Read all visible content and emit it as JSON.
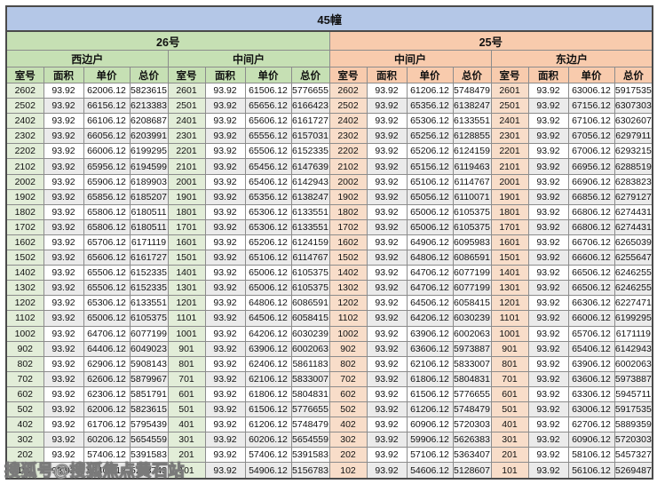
{
  "title": "45幢",
  "buildings": [
    {
      "name": "26号",
      "units": [
        "西边户",
        "中间户"
      ]
    },
    {
      "name": "25号",
      "units": [
        "中间户",
        "东边户"
      ]
    }
  ],
  "column_headers": [
    "室号",
    "面积",
    "单价",
    "总价"
  ],
  "watermark": "搜狐号@搜狐焦点黄石站",
  "colors": {
    "banner_bg": "#b4c7e7",
    "building_26_bg": "#c6e0b4",
    "building_25_bg": "#f8cbad",
    "room_cell_26_bg": "#e2edd8",
    "room_cell_25_bg": "#f8ddc9",
    "row_bg": "#ffffff",
    "stripe_bg": "#ebebeb"
  },
  "rows": [
    [
      [
        "2602",
        "93.92",
        "62006.12",
        "5823615"
      ],
      [
        "2601",
        "93.92",
        "61506.12",
        "5776655"
      ],
      [
        "2602",
        "93.92",
        "61206.12",
        "5748479"
      ],
      [
        "2601",
        "93.92",
        "63006.12",
        "5917535"
      ]
    ],
    [
      [
        "2502",
        "93.92",
        "66156.12",
        "6213383"
      ],
      [
        "2501",
        "93.92",
        "65656.12",
        "6166423"
      ],
      [
        "2502",
        "93.92",
        "65356.12",
        "6138247"
      ],
      [
        "2501",
        "93.92",
        "67156.12",
        "6307303"
      ]
    ],
    [
      [
        "2402",
        "93.92",
        "66106.12",
        "6208687"
      ],
      [
        "2401",
        "93.92",
        "65606.12",
        "6161727"
      ],
      [
        "2402",
        "93.92",
        "65306.12",
        "6133551"
      ],
      [
        "2401",
        "93.92",
        "67106.12",
        "6302607"
      ]
    ],
    [
      [
        "2302",
        "93.92",
        "66056.12",
        "6203991"
      ],
      [
        "2301",
        "93.92",
        "65556.12",
        "6157031"
      ],
      [
        "2302",
        "93.92",
        "65256.12",
        "6128855"
      ],
      [
        "2301",
        "93.92",
        "67056.12",
        "6297911"
      ]
    ],
    [
      [
        "2202",
        "93.92",
        "66006.12",
        "6199295"
      ],
      [
        "2201",
        "93.92",
        "65506.12",
        "6152335"
      ],
      [
        "2202",
        "93.92",
        "65206.12",
        "6124159"
      ],
      [
        "2201",
        "93.92",
        "67006.12",
        "6293215"
      ]
    ],
    [
      [
        "2102",
        "93.92",
        "65956.12",
        "6194599"
      ],
      [
        "2101",
        "93.92",
        "65456.12",
        "6147639"
      ],
      [
        "2102",
        "93.92",
        "65156.12",
        "6119463"
      ],
      [
        "2101",
        "93.92",
        "66956.12",
        "6288519"
      ]
    ],
    [
      [
        "2002",
        "93.92",
        "65906.12",
        "6189903"
      ],
      [
        "2001",
        "93.92",
        "65406.12",
        "6142943"
      ],
      [
        "2002",
        "93.92",
        "65106.12",
        "6114767"
      ],
      [
        "2001",
        "93.92",
        "66906.12",
        "6283823"
      ]
    ],
    [
      [
        "1902",
        "93.92",
        "65856.12",
        "6185207"
      ],
      [
        "1901",
        "93.92",
        "65356.12",
        "6138247"
      ],
      [
        "1902",
        "93.92",
        "65056.12",
        "6110071"
      ],
      [
        "1901",
        "93.92",
        "66856.12",
        "6279127"
      ]
    ],
    [
      [
        "1802",
        "93.92",
        "65806.12",
        "6180511"
      ],
      [
        "1801",
        "93.92",
        "65306.12",
        "6133551"
      ],
      [
        "1802",
        "93.92",
        "65006.12",
        "6105375"
      ],
      [
        "1801",
        "93.92",
        "66806.12",
        "6274431"
      ]
    ],
    [
      [
        "1702",
        "93.92",
        "65806.12",
        "6180511"
      ],
      [
        "1701",
        "93.92",
        "65306.12",
        "6133551"
      ],
      [
        "1702",
        "93.92",
        "65006.12",
        "6105375"
      ],
      [
        "1701",
        "93.92",
        "66806.12",
        "6274431"
      ]
    ],
    [
      [
        "1602",
        "93.92",
        "65706.12",
        "6171119"
      ],
      [
        "1601",
        "93.92",
        "65206.12",
        "6124159"
      ],
      [
        "1602",
        "93.92",
        "64906.12",
        "6095983"
      ],
      [
        "1601",
        "93.92",
        "66706.12",
        "6265039"
      ]
    ],
    [
      [
        "1502",
        "93.92",
        "65606.12",
        "6161727"
      ],
      [
        "1501",
        "93.92",
        "65106.12",
        "6114767"
      ],
      [
        "1502",
        "93.92",
        "64806.12",
        "6086591"
      ],
      [
        "1501",
        "93.92",
        "66606.12",
        "6255647"
      ]
    ],
    [
      [
        "1402",
        "93.92",
        "65506.12",
        "6152335"
      ],
      [
        "1401",
        "93.92",
        "65006.12",
        "6105375"
      ],
      [
        "1402",
        "93.92",
        "64706.12",
        "6077199"
      ],
      [
        "1401",
        "93.92",
        "66506.12",
        "6246255"
      ]
    ],
    [
      [
        "1302",
        "93.92",
        "65506.12",
        "6152335"
      ],
      [
        "1301",
        "93.92",
        "65006.12",
        "6105375"
      ],
      [
        "1302",
        "93.92",
        "64706.12",
        "6077199"
      ],
      [
        "1301",
        "93.92",
        "66506.12",
        "6246255"
      ]
    ],
    [
      [
        "1202",
        "93.92",
        "65306.12",
        "6133551"
      ],
      [
        "1201",
        "93.92",
        "64806.12",
        "6086591"
      ],
      [
        "1202",
        "93.92",
        "64506.12",
        "6058415"
      ],
      [
        "1201",
        "93.92",
        "66306.12",
        "6227471"
      ]
    ],
    [
      [
        "1102",
        "93.92",
        "65006.12",
        "6105375"
      ],
      [
        "1101",
        "93.92",
        "64506.12",
        "6058415"
      ],
      [
        "1102",
        "93.92",
        "64206.12",
        "6030239"
      ],
      [
        "1101",
        "93.92",
        "66006.12",
        "6199295"
      ]
    ],
    [
      [
        "1002",
        "93.92",
        "64706.12",
        "6077199"
      ],
      [
        "1001",
        "93.92",
        "64206.12",
        "6030239"
      ],
      [
        "1002",
        "93.92",
        "63906.12",
        "6002063"
      ],
      [
        "1001",
        "93.92",
        "65706.12",
        "6171119"
      ]
    ],
    [
      [
        "902",
        "93.92",
        "64406.12",
        "6049023"
      ],
      [
        "901",
        "93.92",
        "63906.12",
        "6002063"
      ],
      [
        "902",
        "93.92",
        "63606.12",
        "5973887"
      ],
      [
        "901",
        "93.92",
        "65406.12",
        "6142943"
      ]
    ],
    [
      [
        "802",
        "93.92",
        "62906.12",
        "5908143"
      ],
      [
        "801",
        "93.92",
        "62406.12",
        "5861183"
      ],
      [
        "802",
        "93.92",
        "62106.12",
        "5833007"
      ],
      [
        "801",
        "93.92",
        "63906.12",
        "6002063"
      ]
    ],
    [
      [
        "702",
        "93.92",
        "62606.12",
        "5879967"
      ],
      [
        "701",
        "93.92",
        "62106.12",
        "5833007"
      ],
      [
        "702",
        "93.92",
        "61806.12",
        "5804831"
      ],
      [
        "701",
        "93.92",
        "63606.12",
        "5973887"
      ]
    ],
    [
      [
        "602",
        "93.92",
        "62306.12",
        "5851791"
      ],
      [
        "601",
        "93.92",
        "61806.12",
        "5804831"
      ],
      [
        "602",
        "93.92",
        "61506.12",
        "5776655"
      ],
      [
        "601",
        "93.92",
        "63306.12",
        "5945711"
      ]
    ],
    [
      [
        "502",
        "93.92",
        "62006.12",
        "5823615"
      ],
      [
        "501",
        "93.92",
        "61506.12",
        "5776655"
      ],
      [
        "502",
        "93.92",
        "61206.12",
        "5748479"
      ],
      [
        "501",
        "93.92",
        "63006.12",
        "5917535"
      ]
    ],
    [
      [
        "402",
        "93.92",
        "61706.12",
        "5795439"
      ],
      [
        "401",
        "93.92",
        "61206.12",
        "5748479"
      ],
      [
        "402",
        "93.92",
        "60906.12",
        "5720303"
      ],
      [
        "401",
        "93.92",
        "62706.12",
        "5889359"
      ]
    ],
    [
      [
        "302",
        "93.92",
        "60206.12",
        "5654559"
      ],
      [
        "301",
        "93.92",
        "60206.12",
        "5654559"
      ],
      [
        "302",
        "93.92",
        "59906.12",
        "5626383"
      ],
      [
        "301",
        "93.92",
        "60906.12",
        "5720303"
      ]
    ],
    [
      [
        "202",
        "93.92",
        "57406.12",
        "5391583"
      ],
      [
        "201",
        "93.92",
        "57406.12",
        "5391583"
      ],
      [
        "202",
        "93.92",
        "57106.12",
        "5363407"
      ],
      [
        "201",
        "93.92",
        "58106.12",
        "5457327"
      ]
    ],
    [
      [
        "102",
        "93.92",
        "55406.12",
        "5203743"
      ],
      [
        "101",
        "93.92",
        "54906.12",
        "5156783"
      ],
      [
        "102",
        "93.92",
        "54606.12",
        "5128607"
      ],
      [
        "101",
        "93.92",
        "56106.12",
        "5269487"
      ]
    ]
  ]
}
